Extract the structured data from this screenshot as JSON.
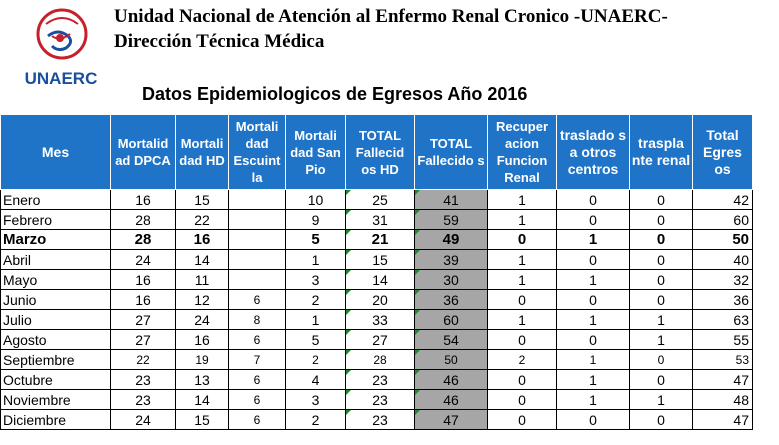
{
  "header": {
    "line1": "Unidad Nacional de Atención al Enfermo Renal Cronico -UNAERC-",
    "line2": "Dirección Técnica Médica",
    "logo_text": "UNAERC"
  },
  "subtitle": "Datos Epidemiologicos de Egresos Año 2016",
  "colors": {
    "header_bg": "#1f74c8",
    "total_col_bg": "#a6a6a6",
    "logo_red": "#c8202a",
    "logo_blue": "#1a4fa0"
  },
  "table": {
    "columns": [
      "Mes",
      "Mortalid ad DPCA",
      "Mortali dad HD",
      "Mortali dad Escuint la",
      "Mortali dad San Pio",
      "TOTAL Fallecid os HD",
      "TOTAL Fallecido s",
      "Recuper acion Funcion Renal",
      "traslado s a otros centros",
      "traspla nte renal",
      "Total Egres os"
    ],
    "rows": [
      [
        "Enero",
        "16",
        "15",
        "",
        "10",
        "25",
        "41",
        "1",
        "0",
        "0",
        "42"
      ],
      [
        "Febrero",
        "28",
        "22",
        "",
        "9",
        "31",
        "59",
        "1",
        "0",
        "0",
        "60"
      ],
      [
        "Marzo",
        "28",
        "16",
        "",
        "5",
        "21",
        "49",
        "0",
        "1",
        "0",
        "50"
      ],
      [
        "Abril",
        "24",
        "14",
        "",
        "1",
        "15",
        "39",
        "1",
        "0",
        "0",
        "40"
      ],
      [
        "Mayo",
        "16",
        "11",
        "",
        "3",
        "14",
        "30",
        "1",
        "1",
        "0",
        "32"
      ],
      [
        "Junio",
        "16",
        "12",
        "6",
        "2",
        "20",
        "36",
        "0",
        "0",
        "0",
        "36"
      ],
      [
        "Julio",
        "27",
        "24",
        "8",
        "1",
        "33",
        "60",
        "1",
        "1",
        "1",
        "63"
      ],
      [
        "Agosto",
        "27",
        "16",
        "6",
        "5",
        "27",
        "54",
        "0",
        "0",
        "1",
        "55"
      ],
      [
        "Septiembre",
        "22",
        "19",
        "7",
        "2",
        "28",
        "50",
        "2",
        "1",
        "0",
        "53"
      ],
      [
        "Octubre",
        "23",
        "13",
        "6",
        "4",
        "23",
        "46",
        "0",
        "1",
        "0",
        "47"
      ],
      [
        "Noviembre",
        "23",
        "14",
        "6",
        "3",
        "23",
        "46",
        "0",
        "1",
        "1",
        "48"
      ],
      [
        "Diciembre",
        "24",
        "15",
        "6",
        "2",
        "23",
        "47",
        "0",
        "0",
        "0",
        "47"
      ]
    ]
  }
}
